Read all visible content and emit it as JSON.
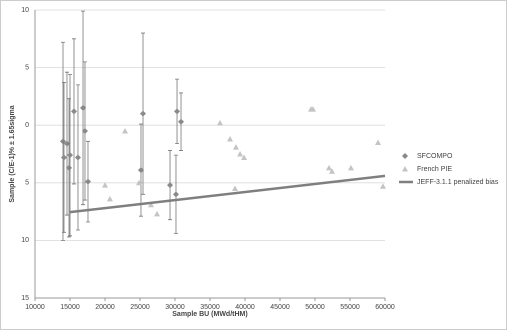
{
  "chart_data": {
    "type": "scatter",
    "x_label": "Sample BU (MWd/tHM)",
    "y_label": "Sample (C/E-1)% ± 1.65sigma",
    "xlim": [
      10000,
      60000
    ],
    "xticks": [
      10000,
      15000,
      20000,
      25000,
      30000,
      35000,
      40000,
      45000,
      50000,
      55000,
      60000
    ],
    "ylim": [
      -15,
      10
    ],
    "yticks": [
      {
        "value": -15,
        "label": "15"
      },
      {
        "value": -10,
        "label": "10"
      },
      {
        "value": -5,
        "label": "5"
      },
      0,
      5,
      10
    ],
    "grid": true,
    "legend": "right",
    "series": [
      {
        "name": "SFCOMPO",
        "mark": "diamond",
        "color": "#8a8a8a",
        "x": [
          14000,
          14140,
          14570,
          14860,
          15000,
          15570,
          16140,
          16860,
          17140,
          17570,
          25140,
          25430,
          29290,
          30140,
          30290,
          30860
        ],
        "values": [
          -1.4,
          -2.8,
          -1.6,
          -3.7,
          -2.6,
          1.2,
          -2.8,
          1.5,
          -0.5,
          -4.9,
          -3.9,
          1.0,
          -5.2,
          -6.0,
          1.2,
          0.3
        ],
        "errors": [
          8.6,
          6.5,
          6.2,
          6.0,
          7.0,
          6.3,
          6.3,
          8.4,
          6.0,
          3.5,
          4.0,
          7.0,
          3.0,
          3.4,
          2.8,
          2.5
        ]
      },
      {
        "name": "French PIE",
        "mark": "triangle",
        "color": "#c4c4c4",
        "x": [
          20000,
          20700,
          22860,
          24860,
          26570,
          27430,
          36430,
          37860,
          38570,
          38710,
          39290,
          39860,
          49430,
          49710,
          52000,
          52430,
          55140,
          59000,
          59710
        ],
        "values": [
          -5.2,
          -6.4,
          -0.5,
          -5.0,
          -6.9,
          -7.7,
          0.2,
          -1.2,
          -5.5,
          -1.9,
          -2.5,
          -2.8,
          1.4,
          1.4,
          -3.7,
          -4.0,
          -3.7,
          -1.5,
          -5.3
        ]
      },
      {
        "name": "JEFF-3.1.1 penalized bias",
        "mark": "line",
        "color": "#7f7f7f",
        "x": [
          15000,
          60000
        ],
        "values": [
          -7.55,
          -4.4
        ]
      }
    ]
  }
}
